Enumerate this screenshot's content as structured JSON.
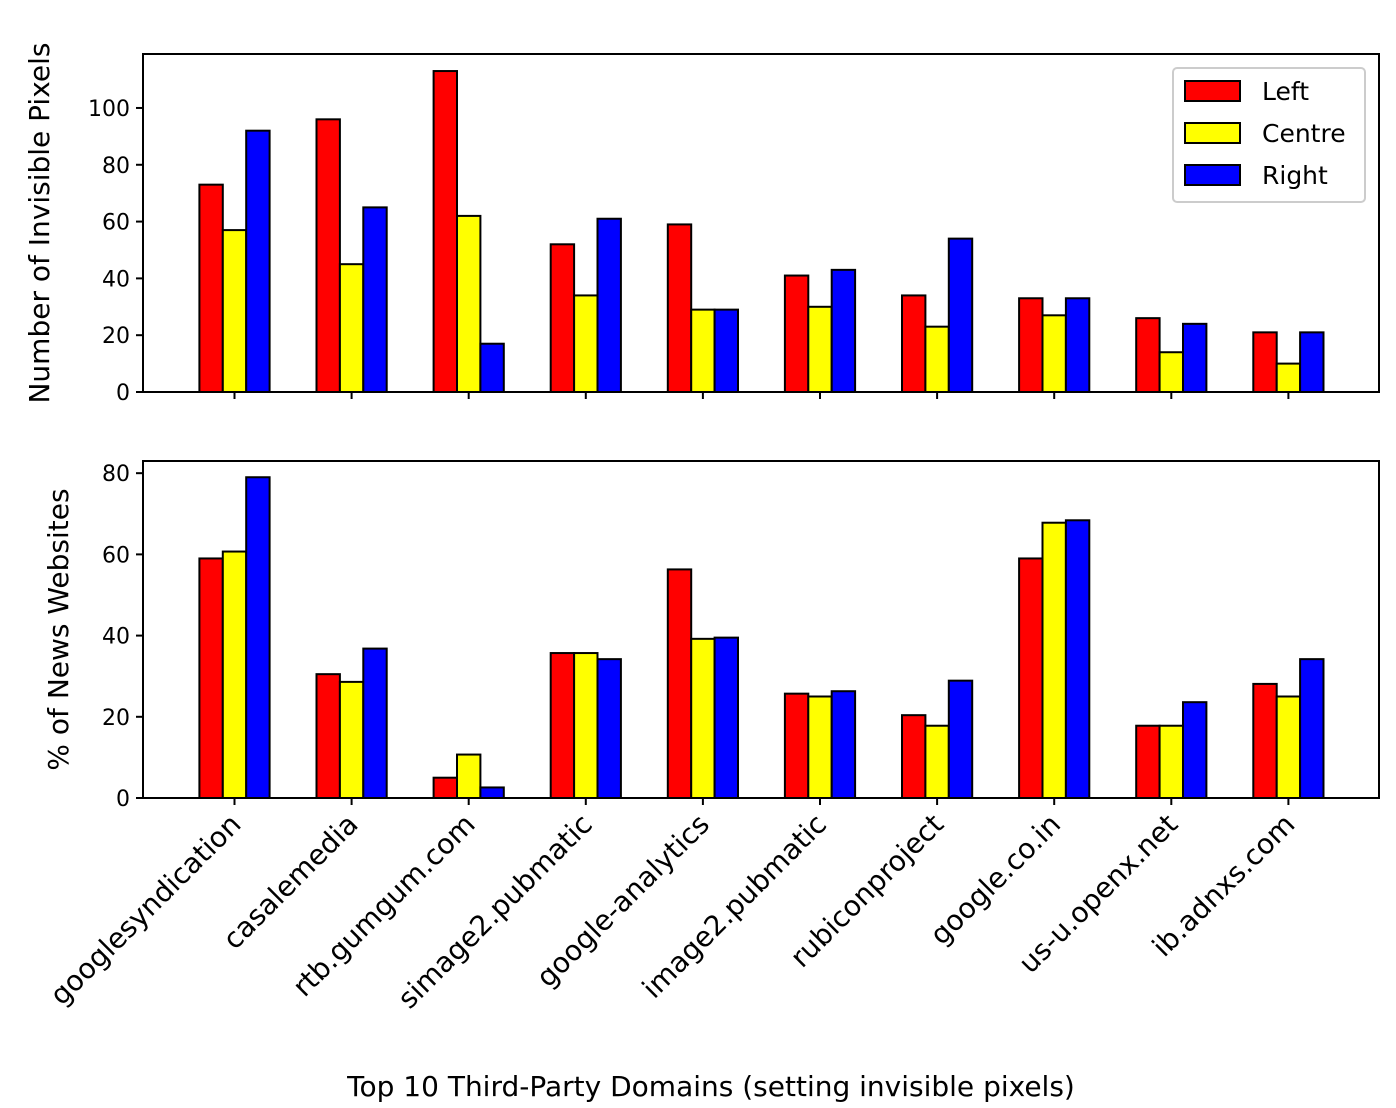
{
  "chart_data": [
    {
      "type": "bar",
      "ylabel": "Number of Invisible Pixels",
      "ylim": [
        0,
        119
      ],
      "yticks": [
        0,
        20,
        40,
        60,
        80,
        100
      ],
      "legend": "top-right",
      "categories": [
        "googlesyndication",
        "casalemedia",
        "rtb.gumgum.com",
        "simage2.pubmatic",
        "google-analytics",
        "image2.pubmatic",
        "rubiconproject",
        "google.co.in",
        "us-u.openx.net",
        "ib.adnxs.com"
      ],
      "series": [
        {
          "name": "Left",
          "color": "#ff0000",
          "values": [
            73,
            96,
            113,
            52,
            59,
            41,
            34,
            33,
            26,
            21
          ]
        },
        {
          "name": "Centre",
          "color": "#ffff00",
          "values": [
            57,
            45,
            62,
            34,
            29,
            30,
            23,
            27,
            14,
            10
          ]
        },
        {
          "name": "Right",
          "color": "#0000ff",
          "values": [
            92,
            65,
            17,
            61,
            29,
            43,
            54,
            33,
            24,
            21
          ]
        }
      ]
    },
    {
      "type": "bar",
      "ylabel": "% of News Websites",
      "xlabel": "Top 10 Third-Party Domains (setting invisible pixels)",
      "ylim": [
        0,
        83
      ],
      "yticks": [
        0,
        20,
        40,
        60,
        80
      ],
      "categories": [
        "googlesyndication",
        "casalemedia",
        "rtb.gumgum.com",
        "simage2.pubmatic",
        "google-analytics",
        "image2.pubmatic",
        "rubiconproject",
        "google.co.in",
        "us-u.openx.net",
        "ib.adnxs.com"
      ],
      "series": [
        {
          "name": "Left",
          "color": "#ff0000",
          "values": [
            59,
            30.5,
            5,
            35.7,
            56.3,
            25.7,
            20.4,
            59,
            17.8,
            28.1
          ]
        },
        {
          "name": "Centre",
          "color": "#ffff00",
          "values": [
            60.7,
            28.6,
            10.7,
            35.7,
            39.2,
            25,
            17.8,
            67.8,
            17.8,
            25
          ]
        },
        {
          "name": "Right",
          "color": "#0000ff",
          "values": [
            79,
            36.8,
            2.6,
            34.2,
            39.5,
            26.3,
            28.9,
            68.4,
            23.6,
            34.2
          ]
        }
      ]
    }
  ]
}
